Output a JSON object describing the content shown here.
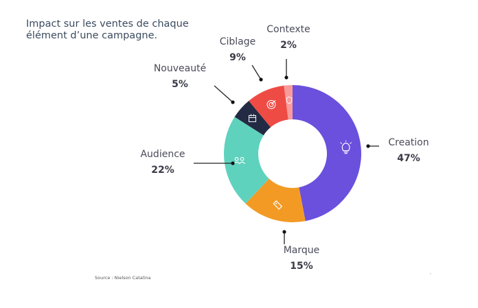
{
  "chart_data": {
    "type": "pie",
    "title_lines": [
      "Impact sur les ventes de chaque",
      "élément d’une campagne."
    ],
    "source": "Source : Nielson Catalina",
    "slices": [
      {
        "label": "Creation",
        "value": 47,
        "display": "47%",
        "color": "#6b50dd",
        "icon": "lightbulb-icon"
      },
      {
        "label": "Marque",
        "value": 15,
        "display": "15%",
        "color": "#f39a24",
        "icon": "tag-icon"
      },
      {
        "label": "Audience",
        "value": 22,
        "display": "22%",
        "color": "#5fd2be",
        "icon": "people-icon"
      },
      {
        "label": "Nouveauté",
        "value": 5,
        "display": "5%",
        "color": "#232b44",
        "icon": "calendar-icon"
      },
      {
        "label": "Ciblage",
        "value": 9,
        "display": "9%",
        "color": "#ef4b45",
        "icon": "target-icon"
      },
      {
        "label": "Contexte",
        "value": 2,
        "display": "2%",
        "color": "#f89b9a",
        "icon": "shield-icon"
      }
    ]
  }
}
